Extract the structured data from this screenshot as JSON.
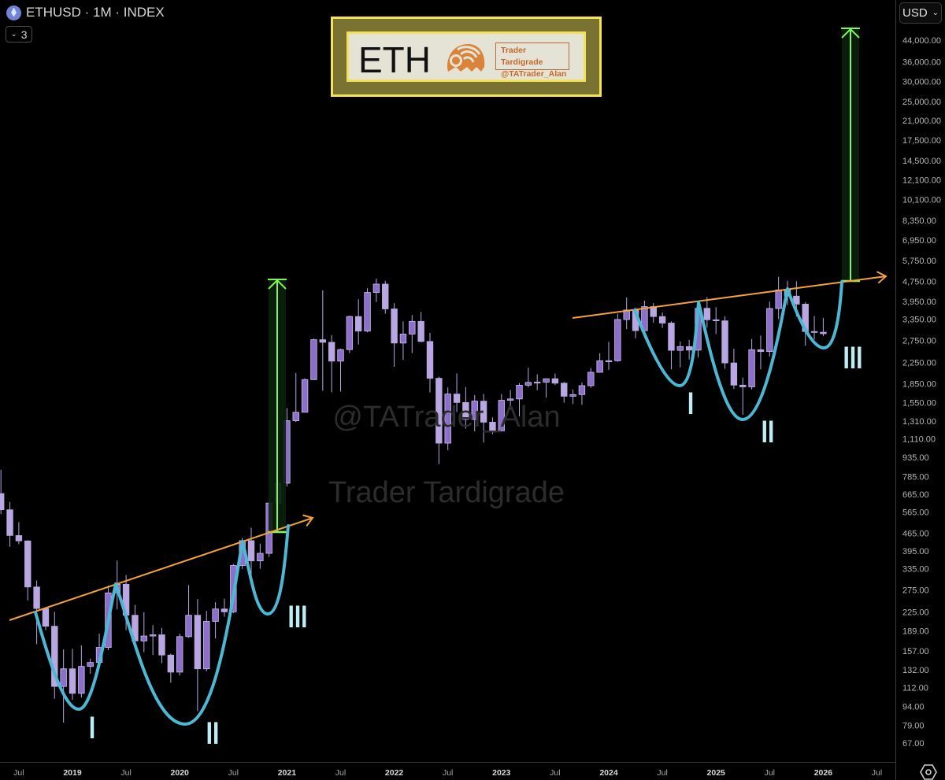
{
  "header": {
    "symbol_title": "ETHUSD · 1M · INDEX",
    "indicators_button_label": "3",
    "currency": "USD",
    "icons": {
      "symbol": "ethereum-icon",
      "collapse": "chevron-down-icon",
      "currency_dropdown": "chevron-down-icon",
      "settings": "gear-hexagon-icon"
    }
  },
  "logo": {
    "asset": "ETH",
    "brand_line1": "Trader Tardigrade",
    "brand_line2": "@TATrader_Alan"
  },
  "watermarks": [
    "@TATrader_Alan",
    "Trader Tardigrade"
  ],
  "colors": {
    "background": "#000000",
    "candle_up": "#8b6fc8",
    "candle_up_border": "#cbbcf0",
    "candle_down": "#b9a7e2",
    "trendline": "#f5a23a",
    "cup_curve": "#4cb8d4",
    "target_arrow": "#7cf75a",
    "roman_labels": "#bdeef5"
  },
  "chart_data": {
    "type": "candlestick",
    "title": "ETHUSD · 1M · INDEX",
    "y_scale": "log",
    "ylim": [
      60,
      50000
    ],
    "y_ticks": [
      "44,000.00",
      "36,000.00",
      "30,000.00",
      "25,000.00",
      "21,000.00",
      "17,500.00",
      "14,500.00",
      "12,100.00",
      "10,100.00",
      "8,350.00",
      "6,950.00",
      "5,750.00",
      "4,750.00",
      "3,950.00",
      "3,350.00",
      "2,750.00",
      "2,250.00",
      "1,850.00",
      "1,550.00",
      "1,310.00",
      "1,110.00",
      "935.00",
      "785.00",
      "665.00",
      "565.00",
      "465.00",
      "395.00",
      "335.00",
      "275.00",
      "225.00",
      "189.00",
      "157.00",
      "132.00",
      "112.00",
      "94.00",
      "79.00",
      "67.00"
    ],
    "x_ticks": [
      {
        "date": "2018-07",
        "label": "Jul"
      },
      {
        "date": "2019-01",
        "label": "2019"
      },
      {
        "date": "2019-07",
        "label": "Jul"
      },
      {
        "date": "2020-01",
        "label": "2020"
      },
      {
        "date": "2020-07",
        "label": "Jul"
      },
      {
        "date": "2021-01",
        "label": "2021"
      },
      {
        "date": "2021-07",
        "label": "Jul"
      },
      {
        "date": "2022-01",
        "label": "2022"
      },
      {
        "date": "2022-07",
        "label": "Jul"
      },
      {
        "date": "2023-01",
        "label": "2023"
      },
      {
        "date": "2023-07",
        "label": "Jul"
      },
      {
        "date": "2024-01",
        "label": "2024"
      },
      {
        "date": "2024-07",
        "label": "Jul"
      },
      {
        "date": "2025-01",
        "label": "2025"
      },
      {
        "date": "2025-07",
        "label": "Jul"
      },
      {
        "date": "2026-01",
        "label": "2026"
      },
      {
        "date": "2026-07",
        "label": "Jul"
      }
    ],
    "grid": false,
    "candle_fields": [
      "month",
      "open",
      "high",
      "low",
      "close"
    ],
    "candles": [
      [
        "2018-05",
        670,
        835,
        555,
        577
      ],
      [
        "2018-06",
        577,
        620,
        410,
        455
      ],
      [
        "2018-07",
        455,
        515,
        420,
        433
      ],
      [
        "2018-08",
        433,
        435,
        250,
        283
      ],
      [
        "2018-09",
        283,
        300,
        167,
        232
      ],
      [
        "2018-10",
        232,
        235,
        190,
        197
      ],
      [
        "2018-11",
        197,
        225,
        101,
        113
      ],
      [
        "2018-12",
        113,
        159,
        81,
        133
      ],
      [
        "2019-01",
        133,
        160,
        100,
        106
      ],
      [
        "2019-02",
        106,
        165,
        102,
        136
      ],
      [
        "2019-03",
        136,
        146,
        127,
        141
      ],
      [
        "2019-04",
        141,
        184,
        139,
        162
      ],
      [
        "2019-05",
        162,
        287,
        158,
        268
      ],
      [
        "2019-06",
        268,
        361,
        230,
        290
      ],
      [
        "2019-07",
        290,
        316,
        190,
        218
      ],
      [
        "2019-08",
        218,
        240,
        165,
        172
      ],
      [
        "2019-09",
        172,
        224,
        155,
        180
      ],
      [
        "2019-10",
        180,
        199,
        151,
        182
      ],
      [
        "2019-11",
        182,
        194,
        140,
        151
      ],
      [
        "2019-12",
        151,
        153,
        117,
        129
      ],
      [
        "2020-01",
        129,
        184,
        125,
        179
      ],
      [
        "2020-02",
        179,
        288,
        177,
        218
      ],
      [
        "2020-03",
        218,
        253,
        90,
        133
      ],
      [
        "2020-04",
        133,
        227,
        130,
        206
      ],
      [
        "2020-05",
        206,
        246,
        176,
        231
      ],
      [
        "2020-06",
        231,
        254,
        215,
        225
      ],
      [
        "2020-07",
        225,
        350,
        222,
        345
      ],
      [
        "2020-08",
        345,
        445,
        334,
        434
      ],
      [
        "2020-09",
        434,
        489,
        308,
        360
      ],
      [
        "2020-10",
        360,
        422,
        335,
        386
      ],
      [
        "2020-11",
        386,
        623,
        373,
        614
      ],
      [
        "2020-12",
        614,
        755,
        535,
        737
      ],
      [
        "2021-01",
        737,
        1476,
        715,
        1312
      ],
      [
        "2021-02",
        1312,
        2036,
        1296,
        1419
      ],
      [
        "2021-03",
        1419,
        1943,
        1432,
        1918
      ],
      [
        "2021-04",
        1918,
        2797,
        1914,
        2773
      ],
      [
        "2021-05",
        2773,
        4372,
        1730,
        2707
      ],
      [
        "2021-06",
        2707,
        2891,
        1707,
        2275
      ],
      [
        "2021-07",
        2275,
        2551,
        1718,
        2531
      ],
      [
        "2021-08",
        2531,
        3466,
        2449,
        3433
      ],
      [
        "2021-09",
        3433,
        4027,
        2652,
        3001
      ],
      [
        "2021-10",
        3001,
        4460,
        2968,
        4288
      ],
      [
        "2021-11",
        4288,
        4868,
        3925,
        4631
      ],
      [
        "2021-12",
        4631,
        4778,
        3524,
        3683
      ],
      [
        "2022-01",
        3683,
        3884,
        2160,
        2688
      ],
      [
        "2022-02",
        2688,
        3282,
        2300,
        2920
      ],
      [
        "2022-03",
        2920,
        3483,
        2450,
        3283
      ],
      [
        "2022-04",
        3283,
        3580,
        2710,
        2727
      ],
      [
        "2022-05",
        2727,
        2950,
        1703,
        1942
      ],
      [
        "2022-06",
        1942,
        1970,
        880,
        1067
      ],
      [
        "2022-07",
        1067,
        1784,
        1000,
        1679
      ],
      [
        "2022-08",
        1679,
        2030,
        1422,
        1553
      ],
      [
        "2022-09",
        1553,
        1790,
        1220,
        1328
      ],
      [
        "2022-10",
        1328,
        1664,
        1191,
        1572
      ],
      [
        "2022-11",
        1572,
        1680,
        1073,
        1295
      ],
      [
        "2022-12",
        1295,
        1353,
        1160,
        1196
      ],
      [
        "2023-01",
        1196,
        1680,
        1191,
        1585
      ],
      [
        "2023-02",
        1585,
        1743,
        1460,
        1605
      ],
      [
        "2023-03",
        1605,
        1857,
        1368,
        1822
      ],
      [
        "2023-04",
        1822,
        2140,
        1785,
        1870
      ],
      [
        "2023-05",
        1870,
        2015,
        1740,
        1874
      ],
      [
        "2023-06",
        1874,
        1930,
        1627,
        1934
      ],
      [
        "2023-07",
        1934,
        2028,
        1825,
        1856
      ],
      [
        "2023-08",
        1856,
        1875,
        1550,
        1645
      ],
      [
        "2023-09",
        1645,
        1750,
        1531,
        1671
      ],
      [
        "2023-10",
        1671,
        1865,
        1521,
        1814
      ],
      [
        "2023-11",
        1814,
        2136,
        1777,
        2052
      ],
      [
        "2023-12",
        2052,
        2448,
        2050,
        2282
      ],
      [
        "2024-01",
        2282,
        2717,
        2100,
        2283
      ],
      [
        "2024-02",
        2283,
        3522,
        2265,
        3340
      ],
      [
        "2024-03",
        3340,
        4093,
        3056,
        3647
      ],
      [
        "2024-04",
        3647,
        3730,
        2810,
        3014
      ],
      [
        "2024-05",
        3014,
        3977,
        2816,
        3762
      ],
      [
        "2024-06",
        3762,
        3887,
        3240,
        3433
      ],
      [
        "2024-07",
        3433,
        3563,
        3090,
        3232
      ],
      [
        "2024-08",
        3232,
        3283,
        2111,
        2513
      ],
      [
        "2024-09",
        2513,
        2726,
        2150,
        2602
      ],
      [
        "2024-10",
        2602,
        2769,
        2310,
        2518
      ],
      [
        "2024-11",
        2518,
        3720,
        2358,
        3705
      ],
      [
        "2024-12",
        3705,
        4107,
        3100,
        3332
      ],
      [
        "2025-01",
        3332,
        3745,
        2920,
        3300
      ],
      [
        "2025-02",
        3300,
        3440,
        2120,
        2237
      ],
      [
        "2025-03",
        2237,
        2550,
        1760,
        1823
      ],
      [
        "2025-04",
        1823,
        1956,
        1385,
        1794
      ],
      [
        "2025-05",
        1794,
        2788,
        1750,
        2528
      ],
      [
        "2025-06",
        2528,
        2880,
        2110,
        2486
      ],
      [
        "2025-07",
        2486,
        3940,
        2373,
        3697
      ],
      [
        "2025-08",
        3697,
        4956,
        3355,
        4390
      ],
      [
        "2025-09",
        4390,
        4770,
        3815,
        4145
      ],
      [
        "2025-10",
        4145,
        4755,
        3435,
        3848
      ],
      [
        "2025-11",
        3848,
        3920,
        2620,
        2990
      ],
      [
        "2025-12",
        2990,
        3450,
        2780,
        2970
      ],
      [
        "2026-01",
        2970,
        3390,
        2865,
        2930
      ]
    ],
    "annotations": {
      "cup_labels": [
        "I",
        "II",
        "III"
      ]
    }
  }
}
